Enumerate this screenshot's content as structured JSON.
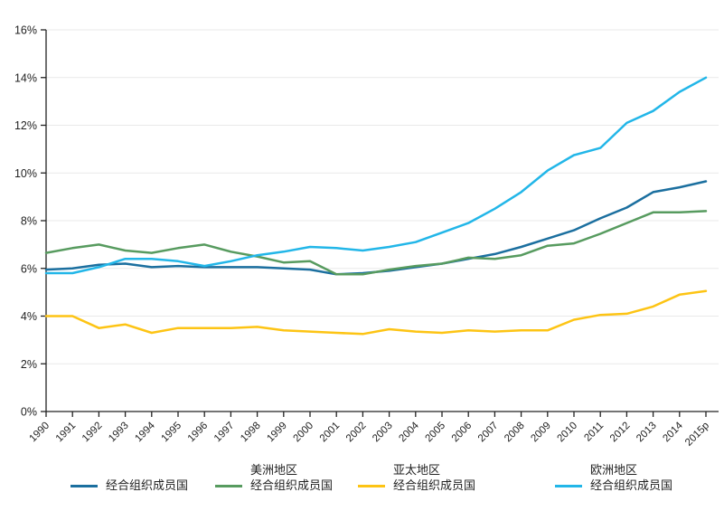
{
  "chart_data": {
    "type": "line",
    "title": "",
    "xlabel": "",
    "ylabel": "",
    "ylim": [
      0,
      16
    ],
    "ytick_step": 2,
    "ytick_labels": [
      "0%",
      "2%",
      "4%",
      "6%",
      "8%",
      "10%",
      "12%",
      "14%",
      "16%"
    ],
    "grid": true,
    "legend_position": "bottom",
    "x": [
      "1990",
      "1991",
      "1992",
      "1993",
      "1994",
      "1995",
      "1996",
      "1997",
      "1998",
      "1999",
      "2000",
      "2001",
      "2002",
      "2003",
      "2004",
      "2005",
      "2006",
      "2007",
      "2008",
      "2009",
      "2010",
      "2011",
      "2012",
      "2013",
      "2014",
      "2015p"
    ],
    "series": [
      {
        "name": "经合组织成员国",
        "color": "#1b6f9f",
        "values": [
          5.95,
          6.0,
          6.15,
          6.2,
          6.05,
          6.1,
          6.05,
          6.05,
          6.05,
          6.0,
          5.95,
          5.75,
          5.8,
          5.9,
          6.05,
          6.2,
          6.4,
          6.6,
          6.9,
          7.25,
          7.6,
          8.1,
          8.55,
          9.2,
          9.4,
          9.65
        ]
      },
      {
        "name": "美洲地区 经合组织成员国",
        "color": "#579b5f",
        "values": [
          6.65,
          6.85,
          7.0,
          6.75,
          6.65,
          6.85,
          7.0,
          6.7,
          6.5,
          6.25,
          6.3,
          5.75,
          5.75,
          5.95,
          6.1,
          6.2,
          6.45,
          6.4,
          6.55,
          6.95,
          7.05,
          7.45,
          7.9,
          8.35,
          8.35,
          8.4
        ]
      },
      {
        "name": "亚太地区 经合组织成员国",
        "color": "#fdc414",
        "values": [
          4.0,
          4.0,
          3.5,
          3.65,
          3.3,
          3.5,
          3.5,
          3.5,
          3.55,
          3.4,
          3.35,
          3.3,
          3.25,
          3.45,
          3.35,
          3.3,
          3.4,
          3.35,
          3.4,
          3.4,
          3.85,
          4.05,
          4.1,
          4.4,
          4.9,
          5.05
        ]
      },
      {
        "name": "欧洲地区 经合组织成员国",
        "color": "#22b6e8",
        "values": [
          5.8,
          5.8,
          6.05,
          6.4,
          6.4,
          6.3,
          6.1,
          6.3,
          6.55,
          6.7,
          6.9,
          6.85,
          6.75,
          6.9,
          7.1,
          7.5,
          7.9,
          8.5,
          9.2,
          10.1,
          10.75,
          11.05,
          12.1,
          12.6,
          13.4,
          14.0
        ]
      }
    ]
  },
  "legend": {
    "items": [
      {
        "label_line1": "经合组织成员国",
        "label_line2": "",
        "color": "#1b6f9f"
      },
      {
        "label_line1": "美洲地区",
        "label_line2": "经合组织成员国",
        "color": "#579b5f"
      },
      {
        "label_line1": "亚太地区",
        "label_line2": "经合组织成员国",
        "color": "#fdc414"
      },
      {
        "label_line1": "欧洲地区",
        "label_line2": "经合组织成员国",
        "color": "#22b6e8"
      }
    ],
    "item_gaps": [
      0,
      30,
      28,
      88
    ]
  },
  "colors": {
    "axis": "#222222",
    "grid": "#e9e9e9",
    "tick_label": "#222222",
    "background": "#ffffff"
  }
}
